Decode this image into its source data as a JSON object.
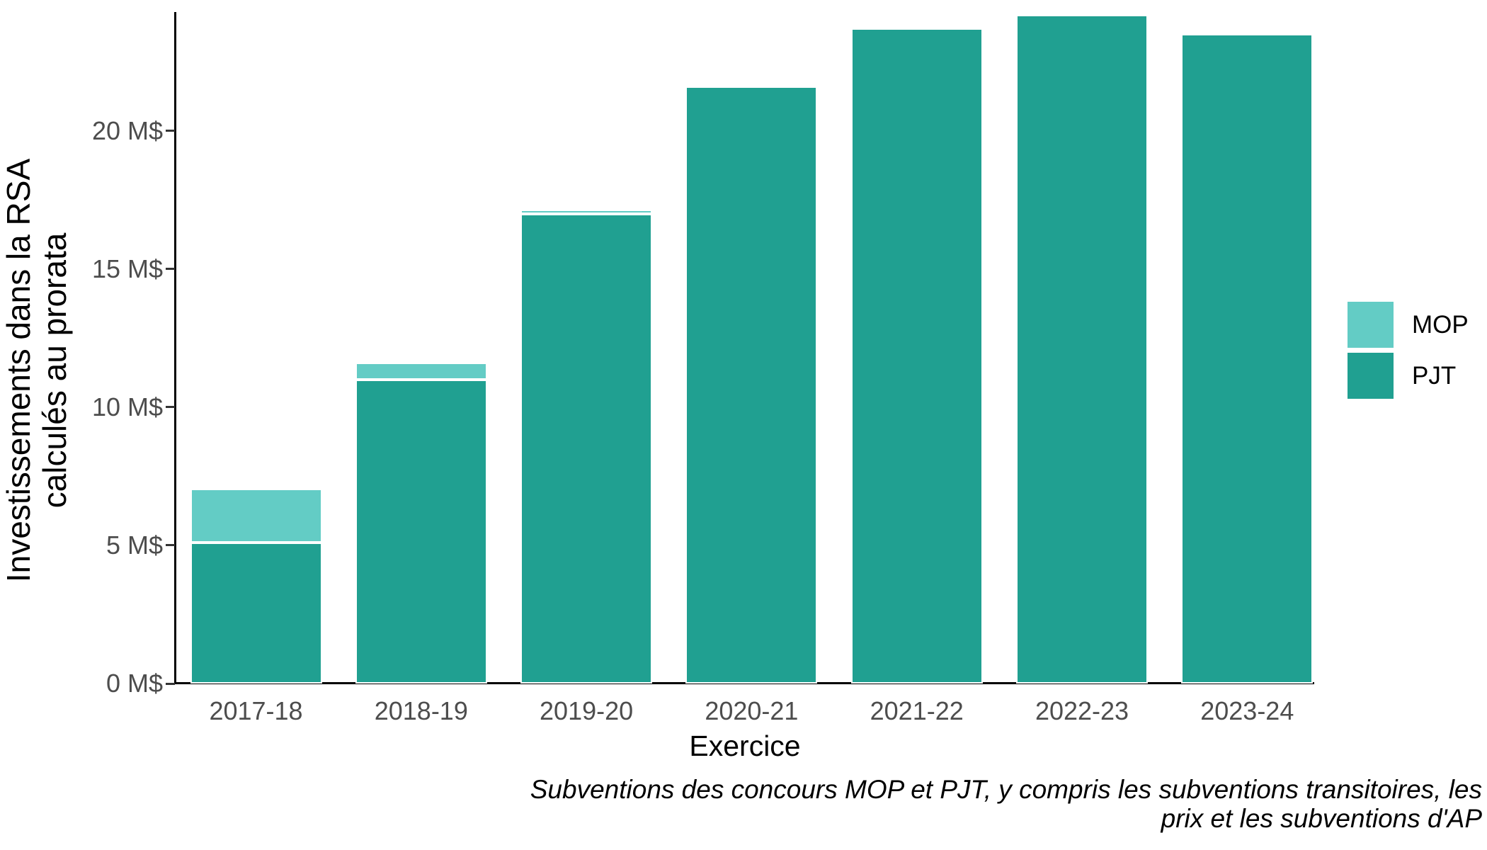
{
  "figure": {
    "y_axis_title": "Investissements dans la RSA\ncalculés au prorata",
    "x_axis_title": "Exercice",
    "caption": "Subventions des concours MOP et PJT, y compris les subventions transitoires, les\nprix et les subventions d'AP"
  },
  "chart_data": {
    "type": "bar",
    "stacked": true,
    "title": "",
    "xlabel": "Exercice",
    "ylabel": "Investissements dans la RSA calculés au prorata",
    "unit": "M$",
    "categories": [
      "2017-18",
      "2018-19",
      "2019-20",
      "2020-21",
      "2021-22",
      "2022-23",
      "2023-24"
    ],
    "series": [
      {
        "name": "MOP",
        "color": "#63CCC5",
        "values": [
          1.95,
          0.6,
          0.15,
          0,
          0,
          0,
          0
        ]
      },
      {
        "name": "PJT",
        "color": "#20A091",
        "values": [
          5.1,
          11.0,
          17.0,
          21.6,
          23.7,
          24.2,
          23.5
        ]
      }
    ],
    "totals": [
      7.05,
      11.6,
      17.15,
      21.6,
      23.7,
      24.2,
      23.5
    ],
    "y_ticks": [
      {
        "value": 0,
        "label": "0 M$"
      },
      {
        "value": 5,
        "label": "5 M$"
      },
      {
        "value": 10,
        "label": "10 M$"
      },
      {
        "value": 15,
        "label": "15 M$"
      },
      {
        "value": 20,
        "label": "20 M$"
      }
    ],
    "ylim": [
      0,
      24.3
    ],
    "grid": false,
    "legend_position": "right"
  }
}
